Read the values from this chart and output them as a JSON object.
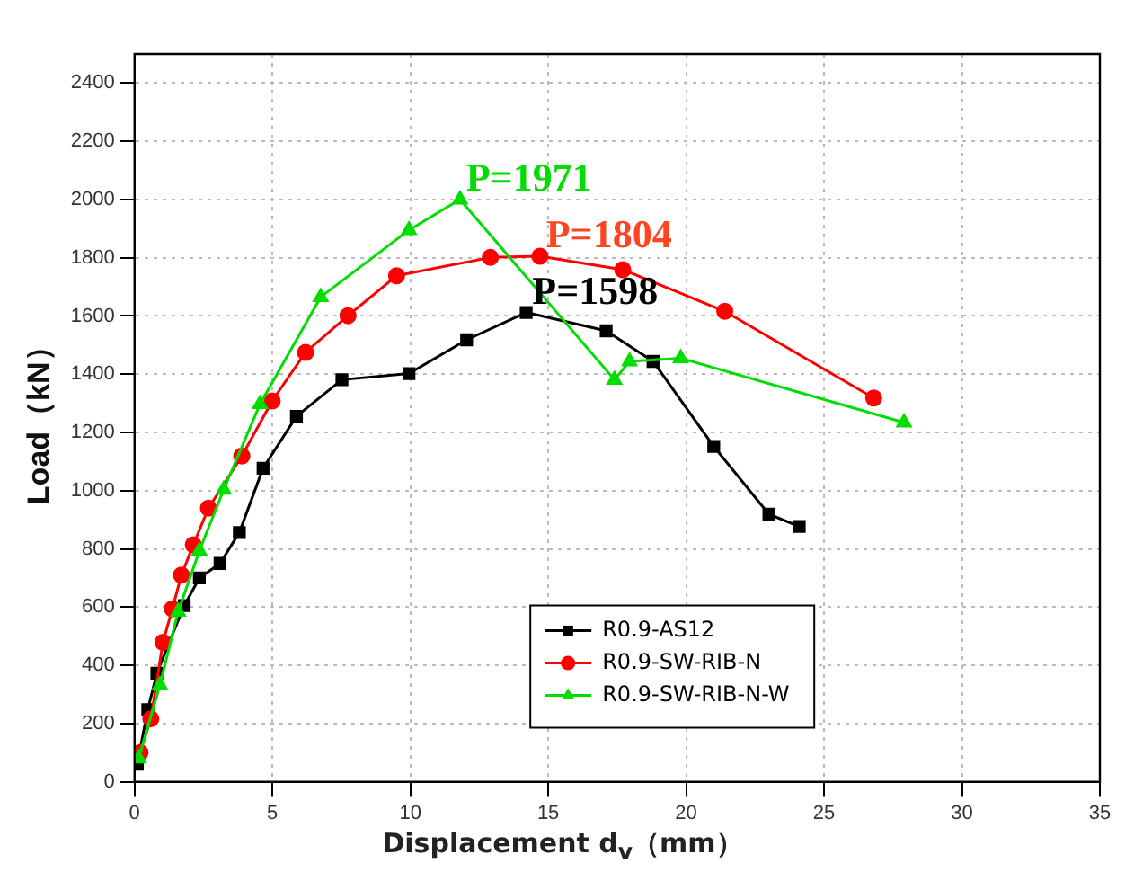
{
  "chart_data": {
    "type": "line",
    "xlabel": "Displacement d$_{v}$（mm）",
    "ylabel": "Load（kN）",
    "xlim": [
      0,
      35
    ],
    "xticks": [
      0,
      5,
      10,
      15,
      20,
      25,
      30,
      35
    ],
    "ylim": [
      0,
      2500
    ],
    "yticks": [
      0,
      200,
      400,
      600,
      800,
      1000,
      1200,
      1400,
      1600,
      1800,
      2000,
      2200,
      2400
    ],
    "grid": true,
    "legend": "bottom right",
    "line_style": "solid",
    "series": [
      {
        "name": "R0.9-AS12",
        "color": "#000000",
        "marker": "square",
        "x": [
          0.1,
          0.48,
          0.81,
          1.8,
          2.35,
          3.1,
          3.8,
          4.66,
          5.87,
          7.52,
          9.95,
          12.04,
          14.2,
          17.1,
          18.8,
          21,
          23,
          24.1
        ],
        "values": [
          60,
          248,
          373,
          605,
          700,
          750,
          856,
          1077,
          1255,
          1381,
          1402,
          1518,
          1612,
          1549,
          1444,
          1152,
          919,
          877
        ]
      },
      {
        "name": "R0.9-SW-RIB-N",
        "color": "#ff0000",
        "marker": "circle",
        "x": [
          0.2,
          0.59,
          1.03,
          1.37,
          1.7,
          2.13,
          2.68,
          3.89,
          4.99,
          6.2,
          7.74,
          9.5,
          12.9,
          14.7,
          17.7,
          21.4,
          26.8
        ],
        "values": [
          100,
          216,
          479,
          594,
          710,
          814,
          940,
          1119,
          1308,
          1475,
          1601,
          1738,
          1801,
          1805,
          1759,
          1616,
          1318
        ]
      },
      {
        "name": "R0.9-SW-RIB-N-W",
        "color": "#00dd00",
        "marker": "triangle",
        "x": [
          0.15,
          0.92,
          1.58,
          2.35,
          3.23,
          4.55,
          6.75,
          9.95,
          11.8,
          17.4,
          17.95,
          19.8,
          27.9
        ],
        "values": [
          80,
          332,
          584,
          793,
          1003,
          1297,
          1665,
          1895,
          2000,
          1381,
          1444,
          1455,
          1234
        ]
      }
    ],
    "annotations": [
      "P=1598",
      "P=1804",
      "P=1971"
    ]
  }
}
